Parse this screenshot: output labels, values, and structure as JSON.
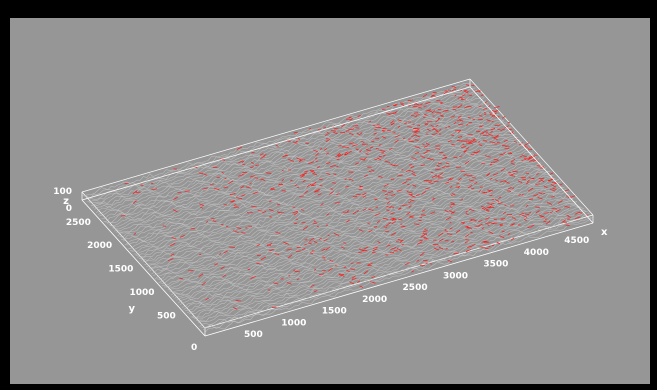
{
  "chart_data": {
    "type": "surface-3d",
    "title": "",
    "xlabel": "x",
    "ylabel": "y",
    "zlabel": "z",
    "x_ticks": [
      500,
      1000,
      1500,
      2000,
      2500,
      3000,
      3500,
      4000,
      4500
    ],
    "y_ticks": [
      0,
      500,
      1000,
      1500,
      2000,
      2500
    ],
    "z_ticks": [
      0,
      100
    ],
    "xlim": [
      0,
      4800
    ],
    "ylim": [
      0,
      2900
    ],
    "zlim": [
      0,
      100
    ],
    "origin_label": "0",
    "colors": {
      "background": "#969696",
      "frame": "#000000",
      "surface": "#c8c8c8",
      "highlight": "#ff1a1a",
      "box": "#ffffff"
    },
    "grid": false
  }
}
